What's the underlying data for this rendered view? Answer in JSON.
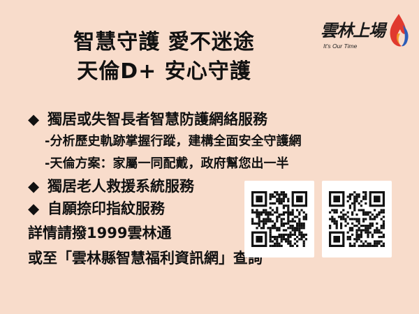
{
  "headline": {
    "line1": "智慧守護 愛不迷途",
    "line2": "天倫D+ 安心守護"
  },
  "logo": {
    "text": "雲林上場",
    "tagline": "It's Our Time",
    "flame_icon": "flame-icon"
  },
  "items": {
    "item1": {
      "bullet": "◆",
      "text": "獨居或失智長者智慧防護網絡服務"
    },
    "sub1": "-分析歷史軌跡掌握行蹤，建構全面安全守護網",
    "sub2": "-天倫方案：家屬一同配戴，政府幫您出一半",
    "item2": {
      "bullet": "◆",
      "text": "獨居老人救援系統服務"
    },
    "item3": {
      "bullet": "◆",
      "text": "自願捺印指紋服務"
    },
    "line1": "詳情請撥1999雲林通",
    "line2": "或至「雲林縣智慧福利資訊網」查詢"
  },
  "qr_codes": [
    "qr-code-icon",
    "qr-code-icon"
  ],
  "colors": {
    "background": "#f8dccb",
    "text": "#111111",
    "flame_red": "#e03a2f",
    "flame_blue": "#2c5db8",
    "flame_orange": "#f39a2b"
  }
}
